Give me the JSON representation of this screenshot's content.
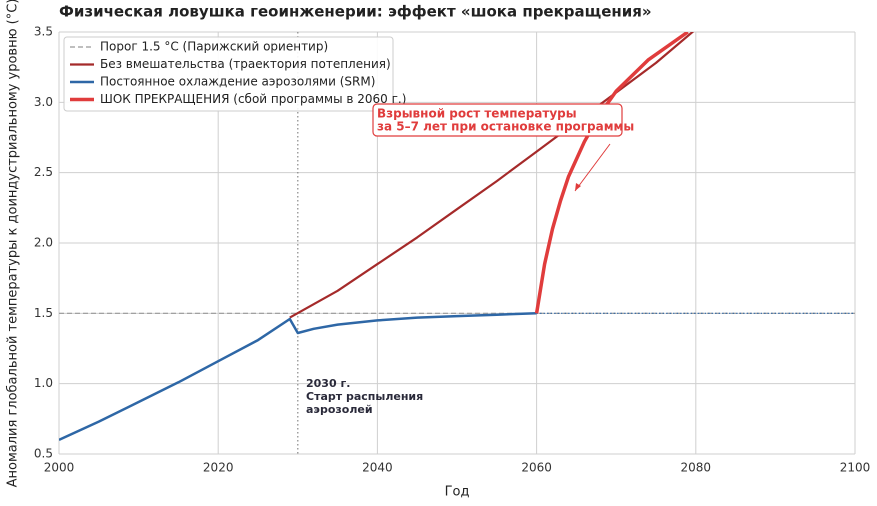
{
  "chart_data": {
    "type": "line",
    "title": "Физическая ловушка геоинженерии: эффект «шока прекращения»",
    "xlabel": "Год",
    "ylabel": "Аномалия глобальной температуры к доиндустриальному уровню (°C)",
    "xlim": [
      2000,
      2100
    ],
    "ylim": [
      0.5,
      3.5
    ],
    "xticks": [
      2000,
      2020,
      2040,
      2060,
      2080,
      2100
    ],
    "yticks": [
      {
        "value": 0.5,
        "label": "0.5"
      },
      {
        "value": 1.0,
        "label": "1.0"
      },
      {
        "value": 1.5,
        "label": "1.5"
      },
      {
        "value": 2.0,
        "label": "2.0"
      },
      {
        "value": 2.5,
        "label": "2.5"
      },
      {
        "value": 3.0,
        "label": "3.0"
      },
      {
        "value": 3.5,
        "label": "3.5"
      }
    ],
    "grid": true,
    "legend": "upper left",
    "vline": 2030,
    "series": [
      {
        "name": "Порог 1.5 °C (Парижский ориентир)",
        "color": "#999999",
        "dash": "dashed",
        "width": 1.2,
        "x": [
          2000,
          2100
        ],
        "values": [
          1.5,
          1.5
        ]
      },
      {
        "name": "Без вмешательства (траектория потепления)",
        "color": "#a52a2a",
        "width": 2.2,
        "x": [
          2029,
          2035,
          2040,
          2045,
          2050,
          2055,
          2060,
          2065,
          2070,
          2075,
          2080
        ],
        "values": [
          1.47,
          1.66,
          1.85,
          2.04,
          2.24,
          2.44,
          2.65,
          2.86,
          3.07,
          3.28,
          3.52
        ]
      },
      {
        "name": "Постоянное охлаждение аэрозолями (SRM)",
        "color": "#2e67a6",
        "width": 2.5,
        "x": [
          2000,
          2005,
          2010,
          2015,
          2020,
          2025,
          2029,
          2030,
          2032,
          2035,
          2040,
          2045,
          2050,
          2055,
          2060
        ],
        "values": [
          0.6,
          0.73,
          0.87,
          1.01,
          1.16,
          1.31,
          1.46,
          1.36,
          1.39,
          1.42,
          1.45,
          1.47,
          1.48,
          1.49,
          1.5
        ]
      },
      {
        "color": "#2e67a6",
        "dash": "dotted",
        "width": 1.2,
        "x": [
          2060,
          2100
        ],
        "values": [
          1.5,
          1.5
        ]
      },
      {
        "name": "ШОК ПРЕКРАЩЕНИЯ (сбой программы в 2060 г.)",
        "color": "#e03c3c",
        "width": 3.5,
        "x": [
          2060,
          2061,
          2062,
          2063,
          2064,
          2066,
          2068,
          2070,
          2074,
          2079
        ],
        "values": [
          1.5,
          1.85,
          2.1,
          2.3,
          2.47,
          2.72,
          2.92,
          3.08,
          3.3,
          3.5
        ]
      }
    ],
    "annotations": [
      {
        "lines": [
          "2030 г.",
          "Старт распыления",
          "аэрозолей"
        ]
      },
      {
        "lines": [
          "Взрывной рост температуры",
          "за 5–7 лет при остановке программы"
        ]
      }
    ]
  }
}
